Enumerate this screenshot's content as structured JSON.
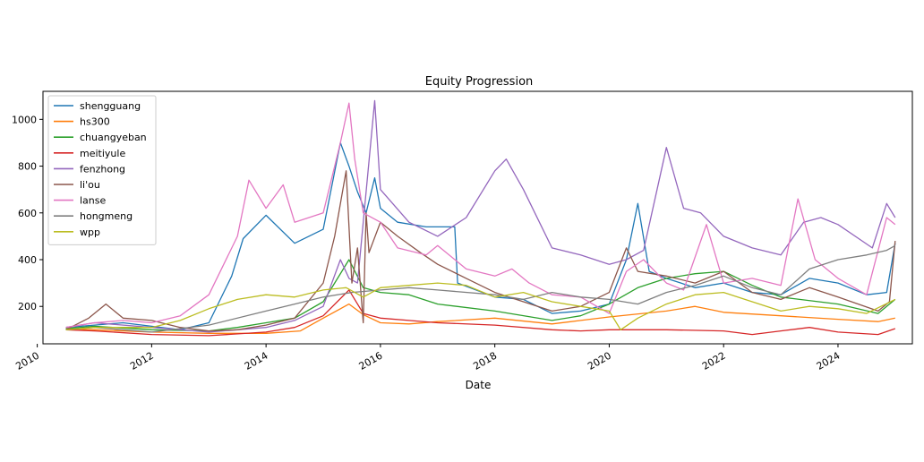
{
  "chart_data": {
    "type": "line",
    "title": "Equity Progression",
    "xlabel": "Date",
    "ylabel": "",
    "xlim": [
      2010.1,
      2025.3
    ],
    "ylim": [
      40,
      1120
    ],
    "x_ticks": [
      2010,
      2012,
      2014,
      2016,
      2018,
      2020,
      2022,
      2024
    ],
    "x_tick_labels": [
      "2010",
      "2012",
      "2014",
      "2016",
      "2018",
      "2020",
      "2022",
      "2024"
    ],
    "y_ticks": [
      200,
      400,
      600,
      800,
      1000
    ],
    "y_tick_labels": [
      "200",
      "400",
      "600",
      "800",
      "1000"
    ],
    "grid": false,
    "legend_position": "top-left",
    "series": [
      {
        "name": "shengguang",
        "color": "#1f77b4",
        "x": [
          2010.5,
          2011,
          2011.5,
          2012,
          2012.5,
          2013,
          2013.4,
          2013.6,
          2014,
          2014.5,
          2015,
          2015.3,
          2015.45,
          2015.6,
          2015.75,
          2015.9,
          2016,
          2016.3,
          2016.8,
          2017.3,
          2017.35,
          2018,
          2018.5,
          2019,
          2019.5,
          2020,
          2020.3,
          2020.5,
          2020.7,
          2021,
          2021.5,
          2022,
          2022.5,
          2023,
          2023.5,
          2024,
          2024.5,
          2024.85,
          2025
        ],
        "y": [
          110,
          120,
          130,
          115,
          100,
          130,
          330,
          490,
          590,
          470,
          530,
          900,
          800,
          690,
          600,
          750,
          620,
          560,
          540,
          540,
          300,
          240,
          230,
          170,
          180,
          210,
          400,
          640,
          350,
          320,
          280,
          300,
          260,
          250,
          320,
          300,
          250,
          260,
          470
        ]
      },
      {
        "name": "hs300",
        "color": "#ff7f0e",
        "x": [
          2010.5,
          2011,
          2012,
          2013,
          2014,
          2014.6,
          2015,
          2015.45,
          2015.7,
          2016,
          2016.5,
          2017,
          2018,
          2019,
          2019.5,
          2020,
          2021,
          2021.5,
          2022,
          2023,
          2024,
          2024.7,
          2025
        ],
        "y": [
          105,
          100,
          90,
          85,
          85,
          95,
          150,
          210,
          165,
          130,
          125,
          135,
          150,
          125,
          140,
          155,
          180,
          200,
          175,
          160,
          145,
          135,
          150
        ]
      },
      {
        "name": "chuangyeban",
        "color": "#2ca02c",
        "x": [
          2010.5,
          2011,
          2012,
          2013,
          2013.5,
          2014,
          2014.5,
          2015,
          2015.45,
          2015.7,
          2016,
          2016.5,
          2017,
          2018,
          2019,
          2019.5,
          2020,
          2020.5,
          2021,
          2021.5,
          2022,
          2022.5,
          2023,
          2024,
          2024.7,
          2025
        ],
        "y": [
          105,
          115,
          100,
          95,
          110,
          130,
          150,
          220,
          400,
          280,
          260,
          250,
          210,
          180,
          140,
          160,
          210,
          280,
          320,
          340,
          350,
          290,
          240,
          210,
          170,
          230
        ]
      },
      {
        "name": "meitiyule",
        "color": "#d62728",
        "x": [
          2010.5,
          2011,
          2012,
          2013,
          2014,
          2014.5,
          2015,
          2015.45,
          2015.7,
          2016,
          2016.5,
          2017,
          2018,
          2019,
          2019.5,
          2020,
          2021,
          2022,
          2022.5,
          2023,
          2023.5,
          2024,
          2024.7,
          2025
        ],
        "y": [
          100,
          95,
          80,
          75,
          90,
          110,
          160,
          270,
          170,
          150,
          140,
          130,
          120,
          100,
          95,
          100,
          100,
          95,
          80,
          95,
          110,
          90,
          80,
          105
        ]
      },
      {
        "name": "fenzhong",
        "color": "#9467bd",
        "x": [
          2010.5,
          2011,
          2012,
          2013,
          2014,
          2014.5,
          2015,
          2015.3,
          2015.45,
          2015.6,
          2015.9,
          2016,
          2016.5,
          2017,
          2017.5,
          2018,
          2018.2,
          2018.5,
          2019,
          2019.5,
          2020,
          2020.3,
          2020.6,
          2021,
          2021.3,
          2021.6,
          2022,
          2022.5,
          2023,
          2023.4,
          2023.7,
          2024,
          2024.6,
          2024.85,
          2025
        ],
        "y": [
          110,
          130,
          110,
          90,
          110,
          140,
          200,
          400,
          320,
          300,
          1080,
          700,
          560,
          500,
          580,
          780,
          830,
          700,
          450,
          420,
          380,
          400,
          440,
          880,
          620,
          600,
          500,
          450,
          420,
          560,
          580,
          550,
          450,
          640,
          580
        ]
      },
      {
        "name": "li'ou",
        "color": "#8c564b",
        "x": [
          2010.5,
          2010.9,
          2011.2,
          2011.5,
          2012,
          2012.5,
          2013,
          2013.5,
          2014,
          2014.5,
          2015,
          2015.2,
          2015.4,
          2015.5,
          2015.6,
          2015.7,
          2015.75,
          2015.8,
          2016,
          2016.3,
          2016.7,
          2017,
          2017.5,
          2018,
          2018.5,
          2019,
          2019.5,
          2020,
          2020.3,
          2020.5,
          2021,
          2021.5,
          2022,
          2022.5,
          2023,
          2023.5,
          2024,
          2024.7,
          2024.9,
          2025
        ],
        "y": [
          100,
          150,
          210,
          150,
          140,
          110,
          95,
          100,
          120,
          150,
          300,
          500,
          780,
          300,
          450,
          130,
          600,
          430,
          560,
          500,
          430,
          380,
          320,
          260,
          220,
          180,
          200,
          260,
          450,
          350,
          330,
          300,
          350,
          260,
          230,
          280,
          240,
          180,
          220,
          480
        ]
      },
      {
        "name": "lanse",
        "color": "#e377c2",
        "x": [
          2010.5,
          2011,
          2011.5,
          2012,
          2012.5,
          2013,
          2013.5,
          2013.7,
          2014,
          2014.3,
          2014.5,
          2015,
          2015.3,
          2015.45,
          2015.55,
          2015.7,
          2016,
          2016.3,
          2016.8,
          2017,
          2017.5,
          2018,
          2018.3,
          2018.6,
          2019,
          2019.5,
          2020,
          2020.3,
          2020.6,
          2021,
          2021.3,
          2021.7,
          2022,
          2022.5,
          2023,
          2023.3,
          2023.6,
          2024,
          2024.5,
          2024.85,
          2025
        ],
        "y": [
          110,
          130,
          140,
          130,
          160,
          250,
          500,
          740,
          620,
          720,
          560,
          600,
          900,
          1070,
          830,
          600,
          560,
          450,
          420,
          460,
          360,
          330,
          360,
          300,
          250,
          240,
          170,
          350,
          400,
          300,
          270,
          550,
          300,
          320,
          290,
          660,
          400,
          320,
          250,
          580,
          550
        ]
      },
      {
        "name": "hongmeng",
        "color": "#7f7f7f",
        "x": [
          2010.5,
          2011,
          2012,
          2013,
          2014,
          2014.5,
          2015,
          2015.5,
          2016,
          2016.5,
          2017,
          2018,
          2018.5,
          2019,
          2019.5,
          2020,
          2020.5,
          2021,
          2021.5,
          2022,
          2022.5,
          2023,
          2023.5,
          2024,
          2024.5,
          2024.85,
          2025
        ],
        "y": [
          100,
          110,
          90,
          120,
          180,
          210,
          240,
          260,
          270,
          280,
          270,
          250,
          230,
          260,
          240,
          230,
          210,
          260,
          290,
          330,
          280,
          250,
          360,
          400,
          420,
          440,
          460
        ]
      },
      {
        "name": "wpp",
        "color": "#bcbd22",
        "x": [
          2010.5,
          2011,
          2012,
          2012.5,
          2013,
          2013.5,
          2014,
          2014.5,
          2015,
          2015.4,
          2015.7,
          2016,
          2016.5,
          2017,
          2017.5,
          2018,
          2018.5,
          2019,
          2019.5,
          2020,
          2020.2,
          2020.5,
          2021,
          2021.5,
          2022,
          2022.5,
          2023,
          2023.5,
          2024,
          2024.5,
          2025
        ],
        "y": [
          100,
          110,
          110,
          140,
          190,
          230,
          250,
          240,
          270,
          280,
          240,
          280,
          290,
          300,
          290,
          240,
          260,
          220,
          200,
          180,
          100,
          150,
          210,
          250,
          260,
          220,
          180,
          200,
          190,
          170,
          230
        ]
      }
    ]
  }
}
